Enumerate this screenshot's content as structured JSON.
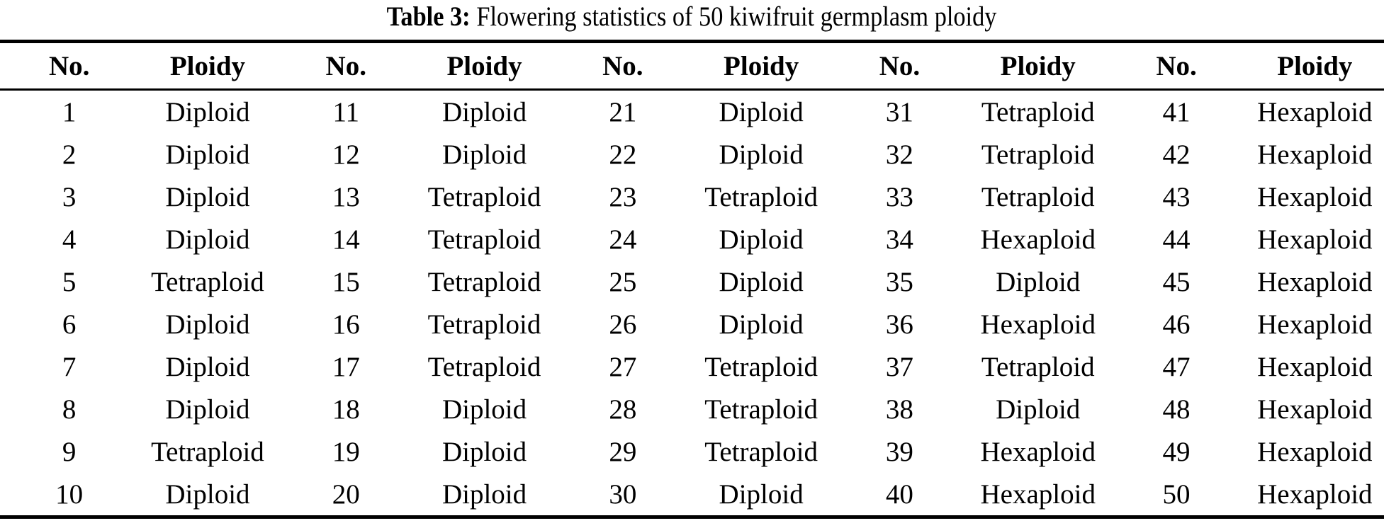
{
  "title": {
    "label": "Table 3:",
    "text": "Flowering statistics of 50 kiwifruit germplasm ploidy"
  },
  "colors": {
    "text": "#000000",
    "background": "#ffffff",
    "rule": "#000000"
  },
  "table": {
    "pair_count": 5,
    "rows_per_pair": 10,
    "header": {
      "no": "No.",
      "ploidy": "Ploidy"
    },
    "entries": [
      {
        "no": "1",
        "ploidy": "Diploid"
      },
      {
        "no": "2",
        "ploidy": "Diploid"
      },
      {
        "no": "3",
        "ploidy": "Diploid"
      },
      {
        "no": "4",
        "ploidy": "Diploid"
      },
      {
        "no": "5",
        "ploidy": "Tetraploid"
      },
      {
        "no": "6",
        "ploidy": "Diploid"
      },
      {
        "no": "7",
        "ploidy": "Diploid"
      },
      {
        "no": "8",
        "ploidy": "Diploid"
      },
      {
        "no": "9",
        "ploidy": "Tetraploid"
      },
      {
        "no": "10",
        "ploidy": "Diploid"
      },
      {
        "no": "11",
        "ploidy": "Diploid"
      },
      {
        "no": "12",
        "ploidy": "Diploid"
      },
      {
        "no": "13",
        "ploidy": "Tetraploid"
      },
      {
        "no": "14",
        "ploidy": "Tetraploid"
      },
      {
        "no": "15",
        "ploidy": "Tetraploid"
      },
      {
        "no": "16",
        "ploidy": "Tetraploid"
      },
      {
        "no": "17",
        "ploidy": "Tetraploid"
      },
      {
        "no": "18",
        "ploidy": "Diploid"
      },
      {
        "no": "19",
        "ploidy": "Diploid"
      },
      {
        "no": "20",
        "ploidy": "Diploid"
      },
      {
        "no": "21",
        "ploidy": "Diploid"
      },
      {
        "no": "22",
        "ploidy": "Diploid"
      },
      {
        "no": "23",
        "ploidy": "Tetraploid"
      },
      {
        "no": "24",
        "ploidy": "Diploid"
      },
      {
        "no": "25",
        "ploidy": "Diploid"
      },
      {
        "no": "26",
        "ploidy": "Diploid"
      },
      {
        "no": "27",
        "ploidy": "Tetraploid"
      },
      {
        "no": "28",
        "ploidy": "Tetraploid"
      },
      {
        "no": "29",
        "ploidy": "Tetraploid"
      },
      {
        "no": "30",
        "ploidy": "Diploid"
      },
      {
        "no": "31",
        "ploidy": "Tetraploid"
      },
      {
        "no": "32",
        "ploidy": "Tetraploid"
      },
      {
        "no": "33",
        "ploidy": "Tetraploid"
      },
      {
        "no": "34",
        "ploidy": "Hexaploid"
      },
      {
        "no": "35",
        "ploidy": "Diploid"
      },
      {
        "no": "36",
        "ploidy": "Hexaploid"
      },
      {
        "no": "37",
        "ploidy": "Tetraploid"
      },
      {
        "no": "38",
        "ploidy": "Diploid"
      },
      {
        "no": "39",
        "ploidy": "Hexaploid"
      },
      {
        "no": "40",
        "ploidy": "Hexaploid"
      },
      {
        "no": "41",
        "ploidy": "Hexaploid"
      },
      {
        "no": "42",
        "ploidy": "Hexaploid"
      },
      {
        "no": "43",
        "ploidy": "Hexaploid"
      },
      {
        "no": "44",
        "ploidy": "Hexaploid"
      },
      {
        "no": "45",
        "ploidy": "Hexaploid"
      },
      {
        "no": "46",
        "ploidy": "Hexaploid"
      },
      {
        "no": "47",
        "ploidy": "Hexaploid"
      },
      {
        "no": "48",
        "ploidy": "Hexaploid"
      },
      {
        "no": "49",
        "ploidy": "Hexaploid"
      },
      {
        "no": "50",
        "ploidy": "Hexaploid"
      }
    ]
  }
}
